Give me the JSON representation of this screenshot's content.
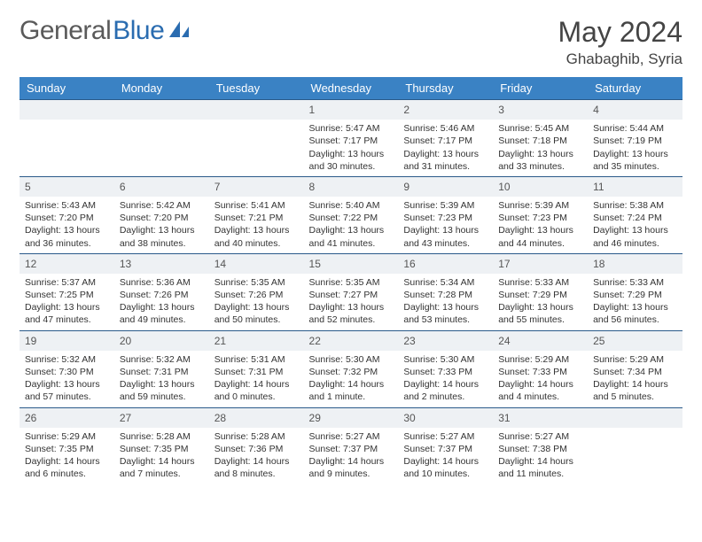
{
  "brand": {
    "text1": "General",
    "text2": "Blue"
  },
  "title": "May 2024",
  "location": "Ghabaghib, Syria",
  "colors": {
    "header_bg": "#3a82c4",
    "header_text": "#ffffff",
    "daynum_bg": "#eef1f4",
    "row_divider": "#2a5a8a",
    "body_text": "#333333",
    "page_bg": "#ffffff",
    "logo_blue": "#2a6cb0",
    "title_color": "#444444"
  },
  "fonts": {
    "base_family": "Arial",
    "title_size_pt": 24,
    "header_size_pt": 10,
    "cell_size_pt": 8
  },
  "day_headers": [
    "Sunday",
    "Monday",
    "Tuesday",
    "Wednesday",
    "Thursday",
    "Friday",
    "Saturday"
  ],
  "weeks": [
    [
      {
        "n": "",
        "sr": "",
        "ss": "",
        "dl": ""
      },
      {
        "n": "",
        "sr": "",
        "ss": "",
        "dl": ""
      },
      {
        "n": "",
        "sr": "",
        "ss": "",
        "dl": ""
      },
      {
        "n": "1",
        "sr": "5:47 AM",
        "ss": "7:17 PM",
        "dl": "13 hours and 30 minutes."
      },
      {
        "n": "2",
        "sr": "5:46 AM",
        "ss": "7:17 PM",
        "dl": "13 hours and 31 minutes."
      },
      {
        "n": "3",
        "sr": "5:45 AM",
        "ss": "7:18 PM",
        "dl": "13 hours and 33 minutes."
      },
      {
        "n": "4",
        "sr": "5:44 AM",
        "ss": "7:19 PM",
        "dl": "13 hours and 35 minutes."
      }
    ],
    [
      {
        "n": "5",
        "sr": "5:43 AM",
        "ss": "7:20 PM",
        "dl": "13 hours and 36 minutes."
      },
      {
        "n": "6",
        "sr": "5:42 AM",
        "ss": "7:20 PM",
        "dl": "13 hours and 38 minutes."
      },
      {
        "n": "7",
        "sr": "5:41 AM",
        "ss": "7:21 PM",
        "dl": "13 hours and 40 minutes."
      },
      {
        "n": "8",
        "sr": "5:40 AM",
        "ss": "7:22 PM",
        "dl": "13 hours and 41 minutes."
      },
      {
        "n": "9",
        "sr": "5:39 AM",
        "ss": "7:23 PM",
        "dl": "13 hours and 43 minutes."
      },
      {
        "n": "10",
        "sr": "5:39 AM",
        "ss": "7:23 PM",
        "dl": "13 hours and 44 minutes."
      },
      {
        "n": "11",
        "sr": "5:38 AM",
        "ss": "7:24 PM",
        "dl": "13 hours and 46 minutes."
      }
    ],
    [
      {
        "n": "12",
        "sr": "5:37 AM",
        "ss": "7:25 PM",
        "dl": "13 hours and 47 minutes."
      },
      {
        "n": "13",
        "sr": "5:36 AM",
        "ss": "7:26 PM",
        "dl": "13 hours and 49 minutes."
      },
      {
        "n": "14",
        "sr": "5:35 AM",
        "ss": "7:26 PM",
        "dl": "13 hours and 50 minutes."
      },
      {
        "n": "15",
        "sr": "5:35 AM",
        "ss": "7:27 PM",
        "dl": "13 hours and 52 minutes."
      },
      {
        "n": "16",
        "sr": "5:34 AM",
        "ss": "7:28 PM",
        "dl": "13 hours and 53 minutes."
      },
      {
        "n": "17",
        "sr": "5:33 AM",
        "ss": "7:29 PM",
        "dl": "13 hours and 55 minutes."
      },
      {
        "n": "18",
        "sr": "5:33 AM",
        "ss": "7:29 PM",
        "dl": "13 hours and 56 minutes."
      }
    ],
    [
      {
        "n": "19",
        "sr": "5:32 AM",
        "ss": "7:30 PM",
        "dl": "13 hours and 57 minutes."
      },
      {
        "n": "20",
        "sr": "5:32 AM",
        "ss": "7:31 PM",
        "dl": "13 hours and 59 minutes."
      },
      {
        "n": "21",
        "sr": "5:31 AM",
        "ss": "7:31 PM",
        "dl": "14 hours and 0 minutes."
      },
      {
        "n": "22",
        "sr": "5:30 AM",
        "ss": "7:32 PM",
        "dl": "14 hours and 1 minute."
      },
      {
        "n": "23",
        "sr": "5:30 AM",
        "ss": "7:33 PM",
        "dl": "14 hours and 2 minutes."
      },
      {
        "n": "24",
        "sr": "5:29 AM",
        "ss": "7:33 PM",
        "dl": "14 hours and 4 minutes."
      },
      {
        "n": "25",
        "sr": "5:29 AM",
        "ss": "7:34 PM",
        "dl": "14 hours and 5 minutes."
      }
    ],
    [
      {
        "n": "26",
        "sr": "5:29 AM",
        "ss": "7:35 PM",
        "dl": "14 hours and 6 minutes."
      },
      {
        "n": "27",
        "sr": "5:28 AM",
        "ss": "7:35 PM",
        "dl": "14 hours and 7 minutes."
      },
      {
        "n": "28",
        "sr": "5:28 AM",
        "ss": "7:36 PM",
        "dl": "14 hours and 8 minutes."
      },
      {
        "n": "29",
        "sr": "5:27 AM",
        "ss": "7:37 PM",
        "dl": "14 hours and 9 minutes."
      },
      {
        "n": "30",
        "sr": "5:27 AM",
        "ss": "7:37 PM",
        "dl": "14 hours and 10 minutes."
      },
      {
        "n": "31",
        "sr": "5:27 AM",
        "ss": "7:38 PM",
        "dl": "14 hours and 11 minutes."
      },
      {
        "n": "",
        "sr": "",
        "ss": "",
        "dl": ""
      }
    ]
  ],
  "labels": {
    "sunrise": "Sunrise: ",
    "sunset": "Sunset: ",
    "daylight": "Daylight: "
  }
}
